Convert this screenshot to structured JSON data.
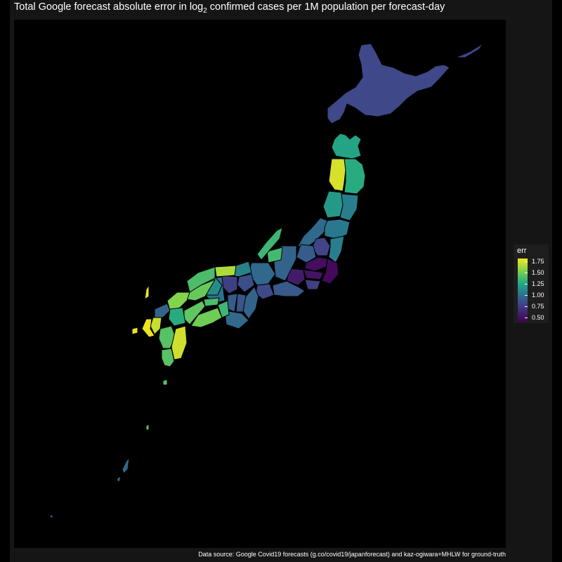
{
  "title": {
    "before": "Total Google forecast absolute error in log",
    "sub": "2",
    "after": " confirmed cases per 1M population per forecast-day"
  },
  "legend": {
    "title": "err",
    "ticks": [
      "1.75",
      "1.50",
      "1.25",
      "1.00",
      "0.75",
      "0.50"
    ]
  },
  "caption": "Data source: Google Covid19 forecasts (g.co/covid19/japanforecast) and kaz-ogiwara+MHLW for ground-truth",
  "colors": {
    "background": "#000000",
    "frame": "#151515",
    "legend_bg": "#1e1e1e",
    "scale": [
      "#440154",
      "#414487",
      "#2a788e",
      "#22a884",
      "#7ad151",
      "#f2e51e"
    ]
  },
  "regions": [
    {
      "name": "hokkaido",
      "err": 0.72
    },
    {
      "name": "aomori",
      "err": 1.18
    },
    {
      "name": "akita",
      "err": 1.72
    },
    {
      "name": "iwate",
      "err": 1.22
    },
    {
      "name": "yamagata",
      "err": 1.12
    },
    {
      "name": "miyagi",
      "err": 0.98
    },
    {
      "name": "niigata",
      "err": 0.88
    },
    {
      "name": "fukushima",
      "err": 0.95
    },
    {
      "name": "tochigi",
      "err": 0.7
    },
    {
      "name": "ibaraki",
      "err": 0.98
    },
    {
      "name": "gunma",
      "err": 0.82
    },
    {
      "name": "saitama",
      "err": 0.5
    },
    {
      "name": "chiba",
      "err": 0.48
    },
    {
      "name": "tokyo",
      "err": 0.52
    },
    {
      "name": "kanagawa",
      "err": 0.68
    },
    {
      "name": "yamanashi",
      "err": 0.55
    },
    {
      "name": "shizuoka",
      "err": 0.8
    },
    {
      "name": "nagano",
      "err": 0.85
    },
    {
      "name": "toyama",
      "err": 1.3
    },
    {
      "name": "ishikawa",
      "err": 1.28
    },
    {
      "name": "gifu",
      "err": 0.88
    },
    {
      "name": "aichi",
      "err": 0.72
    },
    {
      "name": "fukui",
      "err": 1.0
    },
    {
      "name": "shiga",
      "err": 0.75
    },
    {
      "name": "mie",
      "err": 0.85
    },
    {
      "name": "kyoto",
      "err": 0.68
    },
    {
      "name": "nara",
      "err": 0.78
    },
    {
      "name": "osaka",
      "err": 0.82
    },
    {
      "name": "wakayama",
      "err": 0.88
    },
    {
      "name": "hyogo",
      "err": 0.92
    },
    {
      "name": "tottori",
      "err": 1.6
    },
    {
      "name": "okayama",
      "err": 1.05
    },
    {
      "name": "shimane",
      "err": 1.32
    },
    {
      "name": "hiroshima",
      "err": 1.4
    },
    {
      "name": "yamaguchi",
      "err": 1.48
    },
    {
      "name": "kagawa",
      "err": 1.32
    },
    {
      "name": "tokushima",
      "err": 1.28
    },
    {
      "name": "ehime",
      "err": 1.38
    },
    {
      "name": "kochi",
      "err": 1.42
    },
    {
      "name": "fukuoka",
      "err": 0.85
    },
    {
      "name": "saga",
      "err": 1.68
    },
    {
      "name": "nagasaki",
      "err": 1.78
    },
    {
      "name": "oita",
      "err": 1.22
    },
    {
      "name": "kumamoto",
      "err": 1.35
    },
    {
      "name": "miyazaki",
      "err": 1.7
    },
    {
      "name": "kagoshima",
      "err": 1.36
    },
    {
      "name": "okinawa",
      "err": 0.88
    }
  ]
}
